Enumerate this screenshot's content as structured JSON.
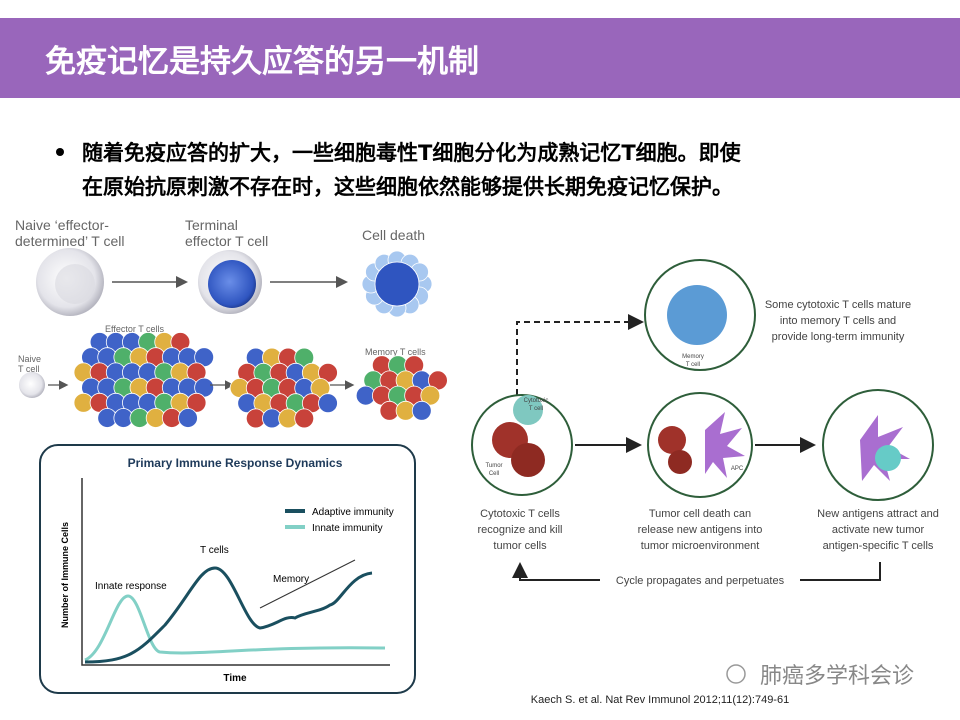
{
  "header": {
    "title": "免疫记忆是持久应答的另一机制"
  },
  "bullet": {
    "lines": [
      "随着免疫应答的扩大，一些细胞毒性T细胞分化为成熟记忆T细胞。即使",
      "在原始抗原刺激不存在时，这些细胞依然能够提供长期免疫记忆保护。"
    ]
  },
  "diagram_left": {
    "naive_label": [
      "Naive ‘effector-",
      "determined’ T cell"
    ],
    "terminal_label": [
      "Terminal",
      "effector T cell"
    ],
    "cell_death": "Cell death",
    "effector_t_cells": "Effector T cells",
    "naive_small": [
      "Naive",
      "T cell"
    ],
    "memory_t_cells": "Memory T cells"
  },
  "dynamics": {
    "title": "Primary Immune Response Dynamics",
    "legend": [
      "Adaptive immunity",
      "Innate immunity"
    ],
    "y_label": "Number of Immune Cells",
    "x_label": "Time",
    "annotations": [
      "Innate response",
      "T cells",
      "Memory"
    ]
  },
  "cycle": {
    "memory_caption": [
      "Some cytotoxic T cells mature",
      "into memory T cells and",
      "provide long-term immunity"
    ],
    "memory_cell": [
      "Memory",
      "T cell"
    ],
    "cytotoxic_cell": [
      "Cytotoxic",
      "T cell"
    ],
    "tumor_cell": [
      "Tumor",
      "Cell"
    ],
    "apc": "APC",
    "captions": [
      [
        "Cytotoxic T cells",
        "recognize and kill",
        "tumor cells"
      ],
      [
        "Tumor cell death can",
        "release new antigens into",
        "tumor microenvironment"
      ],
      [
        "New antigens attract and",
        "activate new tumor",
        "antigen-specific T cells"
      ]
    ],
    "cycle_label": "Cycle propagates and perpetuates"
  },
  "citation": "Kaech S. et al. Nat Rev Immunol 2012;11(12):749-61",
  "watermark": "肺癌多学科会诊"
}
